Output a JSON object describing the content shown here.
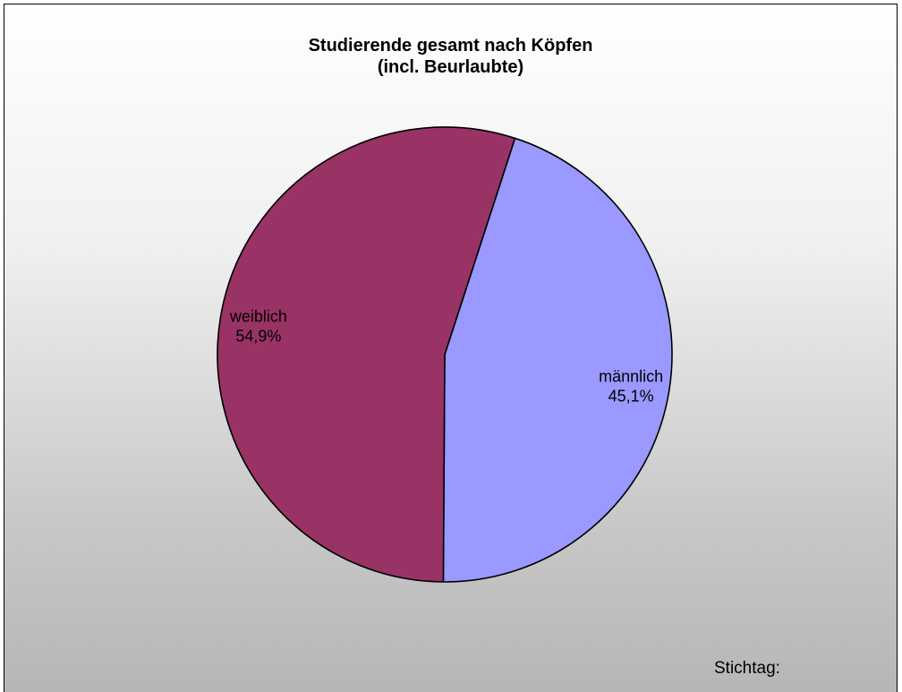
{
  "chart_data": {
    "type": "pie",
    "title": "Studierende gesamt nach Köpfen",
    "subtitle": "(incl. Beurlaubte)",
    "slices": [
      {
        "label": "männlich",
        "value": 45.1,
        "value_label": "45,1%",
        "color": "#9999ff"
      },
      {
        "label": "weiblich",
        "value": 54.9,
        "value_label": "54,9%",
        "color": "#993366"
      }
    ],
    "legend": "none"
  },
  "footer": {
    "note": "Stichtag:"
  }
}
